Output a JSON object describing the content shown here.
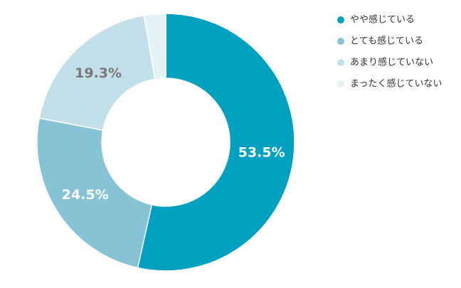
{
  "chart_data": {
    "type": "donut",
    "categories": [
      "やや感じている",
      "とても感じている",
      "あまり感じていない",
      "まったく感じていない"
    ],
    "values": [
      53.5,
      24.5,
      19.3,
      2.7
    ],
    "value_labels": [
      "53.5%",
      "24.5%",
      "19.3%",
      null
    ],
    "colors": [
      "#00a0c0",
      "#86c4d5",
      "#c3e0ea",
      "#e5f2f6"
    ],
    "label_colors": [
      "#ffffff",
      "#ffffff",
      "#777777",
      "#777777"
    ]
  }
}
